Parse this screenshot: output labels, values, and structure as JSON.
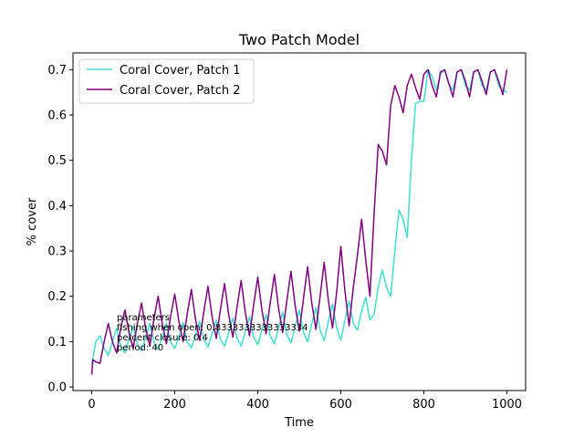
{
  "chart_data": {
    "type": "line",
    "title": "Two Patch Model",
    "xlabel": "Time",
    "ylabel": "% cover",
    "xlim": [
      -45,
      1045
    ],
    "ylim": [
      -0.008,
      0.737
    ],
    "xticks": [
      0,
      200,
      400,
      600,
      800,
      1000
    ],
    "yticks": [
      0.0,
      0.1,
      0.2,
      0.3,
      0.4,
      0.5,
      0.6,
      0.7
    ],
    "grid": false,
    "legend": "upper-left",
    "annotation": [
      "parameters",
      "fishing when open: 0.8333333333333334",
      "percent closure: 0.4",
      "period: 40"
    ],
    "series": [
      {
        "name": "Coral Cover, Patch 1",
        "color": "#40E0D0",
        "points": [
          [
            0,
            0.05
          ],
          [
            10,
            0.1
          ],
          [
            20,
            0.113
          ],
          [
            30,
            0.085
          ],
          [
            40,
            0.07
          ],
          [
            50,
            0.1
          ],
          [
            60,
            0.13
          ],
          [
            70,
            0.09
          ],
          [
            80,
            0.075
          ],
          [
            90,
            0.105
          ],
          [
            100,
            0.135
          ],
          [
            110,
            0.095
          ],
          [
            120,
            0.08
          ],
          [
            130,
            0.11
          ],
          [
            140,
            0.14
          ],
          [
            150,
            0.1
          ],
          [
            160,
            0.083
          ],
          [
            170,
            0.11
          ],
          [
            180,
            0.14
          ],
          [
            190,
            0.1
          ],
          [
            200,
            0.085
          ],
          [
            210,
            0.11
          ],
          [
            220,
            0.142
          ],
          [
            230,
            0.1
          ],
          [
            240,
            0.086
          ],
          [
            250,
            0.113
          ],
          [
            260,
            0.145
          ],
          [
            270,
            0.105
          ],
          [
            280,
            0.088
          ],
          [
            290,
            0.117
          ],
          [
            300,
            0.147
          ],
          [
            310,
            0.105
          ],
          [
            320,
            0.09
          ],
          [
            330,
            0.12
          ],
          [
            340,
            0.152
          ],
          [
            350,
            0.108
          ],
          [
            360,
            0.09
          ],
          [
            370,
            0.122
          ],
          [
            380,
            0.155
          ],
          [
            390,
            0.11
          ],
          [
            400,
            0.093
          ],
          [
            410,
            0.125
          ],
          [
            420,
            0.16
          ],
          [
            430,
            0.113
          ],
          [
            440,
            0.095
          ],
          [
            450,
            0.13
          ],
          [
            460,
            0.165
          ],
          [
            470,
            0.115
          ],
          [
            480,
            0.097
          ],
          [
            490,
            0.133
          ],
          [
            500,
            0.17
          ],
          [
            510,
            0.12
          ],
          [
            520,
            0.1
          ],
          [
            530,
            0.14
          ],
          [
            540,
            0.175
          ],
          [
            550,
            0.125
          ],
          [
            560,
            0.102
          ],
          [
            570,
            0.145
          ],
          [
            580,
            0.183
          ],
          [
            590,
            0.13
          ],
          [
            600,
            0.103
          ],
          [
            610,
            0.148
          ],
          [
            620,
            0.19
          ],
          [
            630,
            0.14
          ],
          [
            640,
            0.125
          ],
          [
            650,
            0.168
          ],
          [
            660,
            0.198
          ],
          [
            670,
            0.148
          ],
          [
            680,
            0.16
          ],
          [
            690,
            0.22
          ],
          [
            700,
            0.258
          ],
          [
            710,
            0.22
          ],
          [
            720,
            0.2
          ],
          [
            730,
            0.3
          ],
          [
            740,
            0.39
          ],
          [
            750,
            0.37
          ],
          [
            760,
            0.33
          ],
          [
            770,
            0.5
          ],
          [
            780,
            0.625
          ],
          [
            790,
            0.63
          ],
          [
            800,
            0.63
          ],
          [
            810,
            0.7
          ],
          [
            820,
            0.685
          ],
          [
            830,
            0.655
          ],
          [
            840,
            0.69
          ],
          [
            850,
            0.7
          ],
          [
            860,
            0.668
          ],
          [
            870,
            0.655
          ],
          [
            880,
            0.695
          ],
          [
            890,
            0.7
          ],
          [
            900,
            0.665
          ],
          [
            910,
            0.655
          ],
          [
            920,
            0.695
          ],
          [
            930,
            0.7
          ],
          [
            940,
            0.665
          ],
          [
            950,
            0.655
          ],
          [
            960,
            0.695
          ],
          [
            970,
            0.7
          ],
          [
            980,
            0.665
          ],
          [
            990,
            0.655
          ],
          [
            1000,
            0.65
          ]
        ]
      },
      {
        "name": "Coral Cover, Patch 2",
        "color": "#800080",
        "points": [
          [
            0,
            0.027
          ],
          [
            3,
            0.06
          ],
          [
            10,
            0.055
          ],
          [
            20,
            0.052
          ],
          [
            30,
            0.1
          ],
          [
            40,
            0.14
          ],
          [
            50,
            0.1
          ],
          [
            60,
            0.075
          ],
          [
            70,
            0.13
          ],
          [
            80,
            0.17
          ],
          [
            90,
            0.12
          ],
          [
            100,
            0.085
          ],
          [
            110,
            0.14
          ],
          [
            120,
            0.185
          ],
          [
            130,
            0.13
          ],
          [
            140,
            0.09
          ],
          [
            150,
            0.15
          ],
          [
            160,
            0.2
          ],
          [
            170,
            0.14
          ],
          [
            180,
            0.095
          ],
          [
            190,
            0.155
          ],
          [
            200,
            0.205
          ],
          [
            210,
            0.145
          ],
          [
            220,
            0.1
          ],
          [
            230,
            0.16
          ],
          [
            240,
            0.215
          ],
          [
            250,
            0.15
          ],
          [
            260,
            0.103
          ],
          [
            270,
            0.165
          ],
          [
            280,
            0.222
          ],
          [
            290,
            0.155
          ],
          [
            300,
            0.107
          ],
          [
            310,
            0.17
          ],
          [
            320,
            0.228
          ],
          [
            330,
            0.16
          ],
          [
            340,
            0.11
          ],
          [
            350,
            0.175
          ],
          [
            360,
            0.235
          ],
          [
            370,
            0.165
          ],
          [
            380,
            0.113
          ],
          [
            390,
            0.18
          ],
          [
            400,
            0.242
          ],
          [
            410,
            0.17
          ],
          [
            420,
            0.117
          ],
          [
            430,
            0.185
          ],
          [
            440,
            0.248
          ],
          [
            450,
            0.175
          ],
          [
            460,
            0.12
          ],
          [
            470,
            0.19
          ],
          [
            480,
            0.255
          ],
          [
            490,
            0.18
          ],
          [
            500,
            0.123
          ],
          [
            510,
            0.195
          ],
          [
            520,
            0.265
          ],
          [
            530,
            0.185
          ],
          [
            540,
            0.127
          ],
          [
            550,
            0.2
          ],
          [
            560,
            0.275
          ],
          [
            570,
            0.19
          ],
          [
            580,
            0.13
          ],
          [
            590,
            0.21
          ],
          [
            600,
            0.31
          ],
          [
            610,
            0.21
          ],
          [
            620,
            0.135
          ],
          [
            630,
            0.22
          ],
          [
            640,
            0.29
          ],
          [
            650,
            0.37
          ],
          [
            660,
            0.28
          ],
          [
            670,
            0.2
          ],
          [
            680,
            0.38
          ],
          [
            690,
            0.535
          ],
          [
            700,
            0.52
          ],
          [
            710,
            0.49
          ],
          [
            720,
            0.62
          ],
          [
            730,
            0.665
          ],
          [
            740,
            0.64
          ],
          [
            750,
            0.605
          ],
          [
            760,
            0.665
          ],
          [
            770,
            0.69
          ],
          [
            780,
            0.66
          ],
          [
            790,
            0.635
          ],
          [
            800,
            0.69
          ],
          [
            810,
            0.7
          ],
          [
            820,
            0.665
          ],
          [
            830,
            0.64
          ],
          [
            840,
            0.695
          ],
          [
            850,
            0.7
          ],
          [
            860,
            0.67
          ],
          [
            870,
            0.64
          ],
          [
            880,
            0.695
          ],
          [
            890,
            0.7
          ],
          [
            900,
            0.675
          ],
          [
            910,
            0.64
          ],
          [
            920,
            0.695
          ],
          [
            930,
            0.7
          ],
          [
            940,
            0.675
          ],
          [
            950,
            0.645
          ],
          [
            960,
            0.695
          ],
          [
            970,
            0.7
          ],
          [
            980,
            0.675
          ],
          [
            990,
            0.645
          ],
          [
            1000,
            0.7
          ]
        ]
      }
    ]
  }
}
